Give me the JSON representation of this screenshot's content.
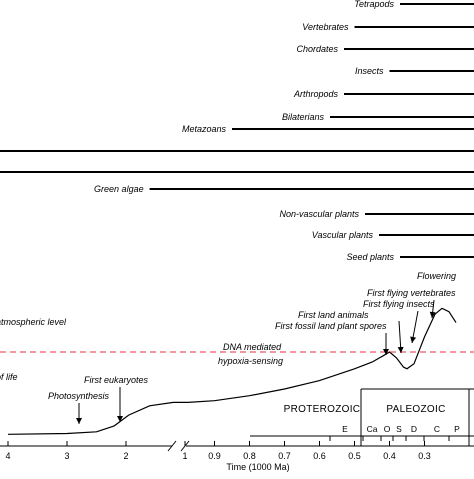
{
  "chart_data": {
    "type": "line",
    "xlabel": "Time (1000 Ma)",
    "x_scale": "broken",
    "x_ticks_left": [
      "4",
      "3",
      "2",
      "1"
    ],
    "x_ticks_right": [
      "0.9",
      "0.8",
      "0.7",
      "0.6",
      "0.5",
      "0.4",
      "0.3"
    ],
    "x_ranges": [
      [
        4.1,
        0.95
      ],
      [
        0.95,
        0.25
      ]
    ],
    "lineages": [
      {
        "name": "Tetrapods",
        "start": 0.37
      },
      {
        "name": "Vertebrates",
        "start": 0.5
      },
      {
        "name": "Chordates",
        "start": 0.53
      },
      {
        "name": "Insects",
        "start": 0.4
      },
      {
        "name": "Arthropods",
        "start": 0.53
      },
      {
        "name": "Bilaterians",
        "start": 0.57
      },
      {
        "name": "Metazoans",
        "start": 0.85
      },
      {
        "name": "",
        "start": 4.1
      },
      {
        "name": "",
        "start": 4.1
      },
      {
        "name": "Green algae",
        "start": 1.6
      },
      {
        "name": "Non-vascular plants",
        "start": 0.47
      },
      {
        "name": "Vascular plants",
        "start": 0.43
      },
      {
        "name": "Seed plants",
        "start": 0.37
      }
    ],
    "reference_line": {
      "label": "atmospheric level",
      "style": "dashed",
      "color": "#e0303b"
    },
    "annotations": [
      {
        "label": "of life",
        "x": 4.0
      },
      {
        "label": "Photosynthesis",
        "x": 2.7
      },
      {
        "label": "First eukaryotes",
        "x": 2.1
      },
      {
        "label": "DNA mediated",
        "x": 0.6
      },
      {
        "label": "hypoxia-sensing",
        "x": 0.6
      },
      {
        "label": "First fossil land plant spores",
        "x": 0.475
      },
      {
        "label": "First land animals",
        "x": 0.43
      },
      {
        "label": "First flying insects",
        "x": 0.33
      },
      {
        "label": "First flying vertebrates",
        "x": 0.23
      },
      {
        "label": "Flowering",
        "x": 0.14
      }
    ],
    "eras": [
      {
        "name": "PROTEROZOIC"
      },
      {
        "name": "PALEOZOIC"
      }
    ],
    "periods": [
      {
        "name": "E",
        "x": 0.6
      },
      {
        "name": "Ca",
        "x": 0.515
      },
      {
        "name": "O",
        "x": 0.465
      },
      {
        "name": "S",
        "x": 0.43
      },
      {
        "name": "D",
        "x": 0.39
      },
      {
        "name": "C",
        "x": 0.33
      },
      {
        "name": "P",
        "x": 0.275
      }
    ],
    "oxygen_curve": [
      [
        4.0,
        0.02
      ],
      [
        3.0,
        0.03
      ],
      [
        2.5,
        0.05
      ],
      [
        2.2,
        0.12
      ],
      [
        1.95,
        0.25
      ],
      [
        1.6,
        0.36
      ],
      [
        1.2,
        0.4
      ],
      [
        0.95,
        0.4
      ],
      [
        0.9,
        0.42
      ],
      [
        0.8,
        0.48
      ],
      [
        0.7,
        0.56
      ],
      [
        0.6,
        0.66
      ],
      [
        0.5,
        0.8
      ],
      [
        0.45,
        0.88
      ],
      [
        0.42,
        0.95
      ],
      [
        0.4,
        1.0
      ],
      [
        0.38,
        0.93
      ],
      [
        0.36,
        0.82
      ],
      [
        0.35,
        0.8
      ],
      [
        0.33,
        0.86
      ],
      [
        0.3,
        1.18
      ],
      [
        0.27,
        1.45
      ],
      [
        0.25,
        1.52
      ],
      [
        0.23,
        1.48
      ],
      [
        0.21,
        1.35
      ]
    ],
    "oxygen_reference": 1.0
  }
}
